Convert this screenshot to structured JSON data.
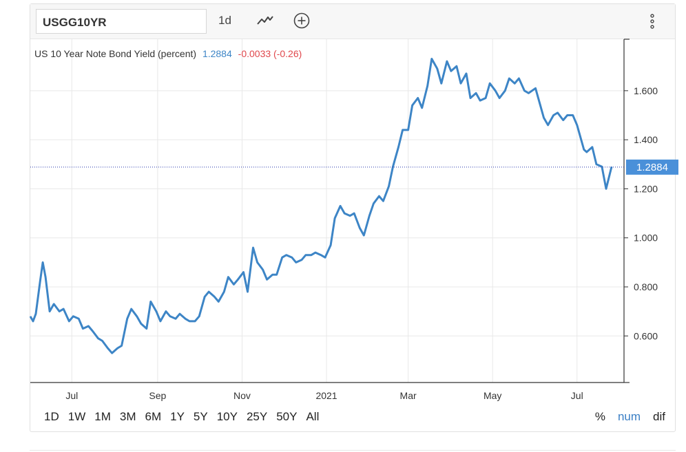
{
  "toolbar": {
    "symbol": "USGG10YR",
    "interval": "1d",
    "chart_type_icon": "line-chart-icon",
    "add_icon": "plus-circle-icon",
    "menu_icon": "kebab-menu-icon"
  },
  "colors": {
    "line": "#3d85c6",
    "change_negative": "#e0474c",
    "last_value_bg": "#4a90d9",
    "gridline": "#e8e8e8",
    "price_line": "#2233aa"
  },
  "ranges": [
    "1D",
    "1W",
    "1M",
    "3M",
    "6M",
    "1Y",
    "5Y",
    "10Y",
    "25Y",
    "50Y",
    "All"
  ],
  "modes": [
    {
      "label": "%",
      "active": false
    },
    {
      "label": "num",
      "active": true
    },
    {
      "label": "dif",
      "active": false
    }
  ],
  "chart_data": {
    "type": "line",
    "legend": {
      "name": "US 10 Year Note Bond Yield (percent)",
      "value": "1.2884",
      "change": "-0.0033 (-0.26)"
    },
    "last_value_label": "1.2884",
    "last_value": 1.2884,
    "x_tick_labels": [
      "Jul",
      "Sep",
      "Nov",
      "2021",
      "Mar",
      "May",
      "Jul"
    ],
    "x_ticks": [
      "2020-07-01",
      "2020-09-01",
      "2020-11-01",
      "2021-01-01",
      "2021-03-01",
      "2021-05-01",
      "2021-07-01"
    ],
    "y_tick_labels": [
      "0.600",
      "0.800",
      "1.000",
      "1.200",
      "1.400",
      "1.600"
    ],
    "ylim": [
      0.41,
      1.81
    ],
    "xlim": [
      "2020-06-01",
      "2021-07-27"
    ],
    "grid": true,
    "series": [
      {
        "x": [
          "2020-06-01",
          "2020-06-03",
          "2020-06-05",
          "2020-06-08",
          "2020-06-10",
          "2020-06-12",
          "2020-06-15",
          "2020-06-18",
          "2020-06-22",
          "2020-06-25",
          "2020-06-29",
          "2020-07-02",
          "2020-07-06",
          "2020-07-09",
          "2020-07-13",
          "2020-07-16",
          "2020-07-20",
          "2020-07-23",
          "2020-07-27",
          "2020-07-30",
          "2020-08-03",
          "2020-08-06",
          "2020-08-10",
          "2020-08-13",
          "2020-08-17",
          "2020-08-20",
          "2020-08-24",
          "2020-08-27",
          "2020-08-31",
          "2020-09-03",
          "2020-09-07",
          "2020-09-10",
          "2020-09-14",
          "2020-09-17",
          "2020-09-21",
          "2020-09-24",
          "2020-09-28",
          "2020-10-01",
          "2020-10-05",
          "2020-10-08",
          "2020-10-12",
          "2020-10-15",
          "2020-10-19",
          "2020-10-22",
          "2020-10-26",
          "2020-10-29",
          "2020-11-02",
          "2020-11-05",
          "2020-11-09",
          "2020-11-12",
          "2020-11-16",
          "2020-11-19",
          "2020-11-23",
          "2020-11-26",
          "2020-11-30",
          "2020-12-03",
          "2020-12-07",
          "2020-12-10",
          "2020-12-14",
          "2020-12-17",
          "2020-12-21",
          "2020-12-24",
          "2020-12-28",
          "2020-12-31",
          "2021-01-04",
          "2021-01-07",
          "2021-01-11",
          "2021-01-14",
          "2021-01-18",
          "2021-01-21",
          "2021-01-25",
          "2021-01-28",
          "2021-02-01",
          "2021-02-04",
          "2021-02-08",
          "2021-02-11",
          "2021-02-15",
          "2021-02-18",
          "2021-02-22",
          "2021-02-25",
          "2021-03-01",
          "2021-03-04",
          "2021-03-08",
          "2021-03-11",
          "2021-03-15",
          "2021-03-18",
          "2021-03-22",
          "2021-03-25",
          "2021-03-29",
          "2021-04-01",
          "2021-04-05",
          "2021-04-08",
          "2021-04-12",
          "2021-04-15",
          "2021-04-19",
          "2021-04-22",
          "2021-04-26",
          "2021-04-29",
          "2021-05-03",
          "2021-05-06",
          "2021-05-10",
          "2021-05-13",
          "2021-05-17",
          "2021-05-20",
          "2021-05-24",
          "2021-05-27",
          "2021-06-01",
          "2021-06-04",
          "2021-06-07",
          "2021-06-10",
          "2021-06-14",
          "2021-06-17",
          "2021-06-21",
          "2021-06-24",
          "2021-06-28",
          "2021-07-01",
          "2021-07-06",
          "2021-07-08",
          "2021-07-12",
          "2021-07-15",
          "2021-07-19",
          "2021-07-22",
          "2021-07-26"
        ],
        "y": [
          0.68,
          0.66,
          0.69,
          0.82,
          0.9,
          0.84,
          0.7,
          0.73,
          0.7,
          0.71,
          0.66,
          0.68,
          0.67,
          0.63,
          0.64,
          0.62,
          0.59,
          0.58,
          0.55,
          0.53,
          0.55,
          0.56,
          0.67,
          0.71,
          0.68,
          0.65,
          0.63,
          0.74,
          0.7,
          0.66,
          0.7,
          0.68,
          0.67,
          0.69,
          0.67,
          0.66,
          0.66,
          0.68,
          0.76,
          0.78,
          0.76,
          0.74,
          0.78,
          0.84,
          0.81,
          0.83,
          0.86,
          0.78,
          0.96,
          0.9,
          0.87,
          0.83,
          0.85,
          0.85,
          0.92,
          0.93,
          0.92,
          0.9,
          0.91,
          0.93,
          0.93,
          0.94,
          0.93,
          0.92,
          0.97,
          1.08,
          1.13,
          1.1,
          1.09,
          1.1,
          1.04,
          1.01,
          1.09,
          1.14,
          1.17,
          1.15,
          1.21,
          1.29,
          1.37,
          1.44,
          1.44,
          1.54,
          1.57,
          1.53,
          1.62,
          1.73,
          1.69,
          1.63,
          1.72,
          1.68,
          1.7,
          1.63,
          1.67,
          1.57,
          1.59,
          1.56,
          1.57,
          1.63,
          1.6,
          1.57,
          1.6,
          1.65,
          1.63,
          1.65,
          1.6,
          1.59,
          1.61,
          1.55,
          1.49,
          1.46,
          1.5,
          1.51,
          1.48,
          1.5,
          1.5,
          1.46,
          1.36,
          1.35,
          1.37,
          1.3,
          1.29,
          1.2,
          1.29
        ]
      }
    ]
  }
}
